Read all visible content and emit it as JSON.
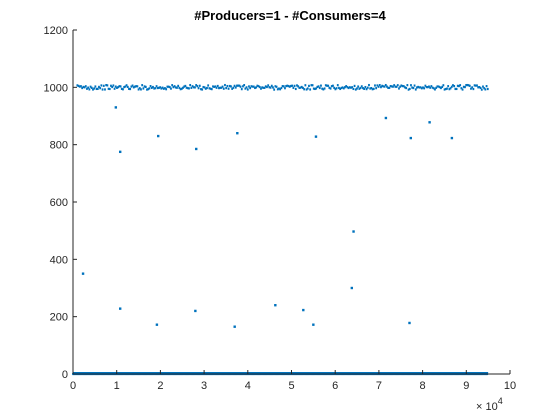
{
  "chart_data": {
    "type": "scatter",
    "title": "#Producers=1 - #Consumers=4",
    "xlabel": "",
    "ylabel": "",
    "x_multiplier_label": {
      "base": "× 10",
      "exponent": "4"
    },
    "xlim": [
      0,
      100000
    ],
    "ylim": [
      0,
      1200
    ],
    "xticks": [
      0,
      10000,
      20000,
      30000,
      40000,
      50000,
      60000,
      70000,
      80000,
      90000,
      100000
    ],
    "xtick_labels": [
      "0",
      "1",
      "2",
      "3",
      "4",
      "5",
      "6",
      "7",
      "8",
      "9",
      "10"
    ],
    "yticks": [
      0,
      200,
      400,
      600,
      800,
      1000,
      1200
    ],
    "ytick_labels": [
      "0",
      "200",
      "400",
      "600",
      "800",
      "1000",
      "1200"
    ],
    "grid": false,
    "marker_color": "#0072BD",
    "series": [
      {
        "dense_bands": [
          {
            "x_start": 0,
            "x_end": 95000,
            "y": 0
          },
          {
            "x_start": 1000,
            "x_end": 95000,
            "y": 1000,
            "jitter": 8
          }
        ],
        "points": [
          {
            "x": 2300,
            "y": 350
          },
          {
            "x": 9800,
            "y": 930
          },
          {
            "x": 10800,
            "y": 775
          },
          {
            "x": 10800,
            "y": 228
          },
          {
            "x": 19200,
            "y": 172
          },
          {
            "x": 19500,
            "y": 830
          },
          {
            "x": 28000,
            "y": 220
          },
          {
            "x": 28200,
            "y": 785
          },
          {
            "x": 37000,
            "y": 165
          },
          {
            "x": 37600,
            "y": 840
          },
          {
            "x": 46300,
            "y": 240
          },
          {
            "x": 52700,
            "y": 223
          },
          {
            "x": 55000,
            "y": 172
          },
          {
            "x": 55600,
            "y": 828
          },
          {
            "x": 63800,
            "y": 300
          },
          {
            "x": 64200,
            "y": 497
          },
          {
            "x": 71600,
            "y": 893
          },
          {
            "x": 77000,
            "y": 178
          },
          {
            "x": 77300,
            "y": 823
          },
          {
            "x": 81600,
            "y": 878
          },
          {
            "x": 86700,
            "y": 823
          }
        ]
      }
    ]
  }
}
